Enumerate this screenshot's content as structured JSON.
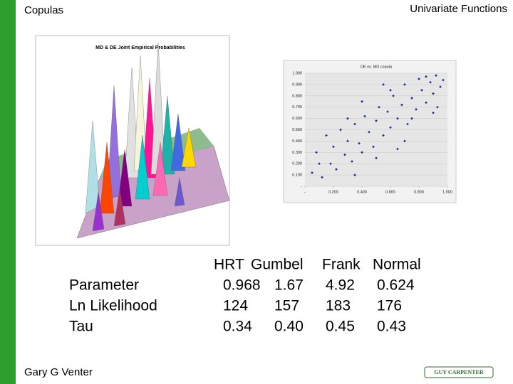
{
  "header": {
    "title": "Copulas",
    "section": "Univariate Functions"
  },
  "figure_3d": {
    "title": "MD & DE Joint Empirical Probabilities"
  },
  "chart_data": {
    "type": "scatter",
    "title": "DE vs. MD copula",
    "color": "#1f2f8f",
    "xlim": [
      0,
      1
    ],
    "ylim": [
      0,
      1
    ],
    "xticks": [
      {
        "value": 0,
        "label": "-"
      },
      {
        "value": 0.2,
        "label": "0.200"
      },
      {
        "value": 0.4,
        "label": "0.400"
      },
      {
        "value": 0.6,
        "label": "0.600"
      },
      {
        "value": 0.8,
        "label": "0.800"
      },
      {
        "value": 1,
        "label": "1.000"
      }
    ],
    "yticks": [
      {
        "value": 0,
        "label": "-"
      },
      {
        "value": 0.1,
        "label": "0.100"
      },
      {
        "value": 0.2,
        "label": "0.200"
      },
      {
        "value": 0.3,
        "label": "0.300"
      },
      {
        "value": 0.4,
        "label": "0.400"
      },
      {
        "value": 0.5,
        "label": "0.500"
      },
      {
        "value": 0.6,
        "label": "0.600"
      },
      {
        "value": 0.7,
        "label": "0.700"
      },
      {
        "value": 0.8,
        "label": "0.800"
      },
      {
        "value": 0.9,
        "label": "0.900"
      },
      {
        "value": 1,
        "label": "1.000"
      }
    ],
    "grid": true,
    "x": [
      0.05,
      0.08,
      0.12,
      0.15,
      0.18,
      0.2,
      0.22,
      0.25,
      0.28,
      0.3,
      0.33,
      0.35,
      0.38,
      0.4,
      0.42,
      0.45,
      0.48,
      0.5,
      0.52,
      0.55,
      0.58,
      0.6,
      0.62,
      0.65,
      0.68,
      0.7,
      0.72,
      0.75,
      0.78,
      0.8,
      0.82,
      0.85,
      0.88,
      0.9,
      0.92,
      0.95,
      0.97,
      0.1,
      0.3,
      0.5,
      0.7,
      0.9,
      0.6,
      0.4,
      0.85,
      0.65,
      0.35,
      0.75,
      0.55,
      0.93
    ],
    "values": [
      0.12,
      0.3,
      0.08,
      0.45,
      0.2,
      0.35,
      0.15,
      0.5,
      0.28,
      0.4,
      0.22,
      0.55,
      0.38,
      0.3,
      0.62,
      0.48,
      0.35,
      0.58,
      0.7,
      0.45,
      0.66,
      0.52,
      0.8,
      0.6,
      0.72,
      0.9,
      0.55,
      0.78,
      0.68,
      0.95,
      0.85,
      0.74,
      0.92,
      0.82,
      0.98,
      0.88,
      0.94,
      0.2,
      0.6,
      0.25,
      0.4,
      0.65,
      0.85,
      0.75,
      0.97,
      0.33,
      0.1,
      0.6,
      0.9,
      0.7
    ]
  },
  "table": {
    "columns": [
      "HRT",
      "Gumbel",
      "Frank",
      "Normal"
    ],
    "rows": [
      [
        "Parameter",
        "0.968",
        "1.67",
        "4.92",
        "0.624"
      ],
      [
        "Ln Likelihood",
        "124",
        "157",
        "183",
        "176"
      ],
      [
        "Tau",
        "0.34",
        "0.40",
        "0.45",
        "0.43"
      ]
    ]
  },
  "footer": {
    "author": "Gary G Venter",
    "logo": "GUY CARPENTER"
  }
}
